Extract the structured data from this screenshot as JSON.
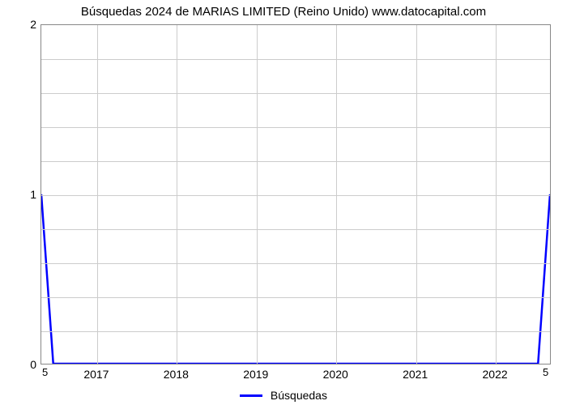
{
  "title": "Búsquedas 2024 de MARIAS LIMITED (Reino Unido) www.datocapital.com",
  "chart": {
    "type": "line",
    "background_color": "#ffffff",
    "grid_color": "#cccccc",
    "border_color": "#888888",
    "title_fontsize": 15,
    "label_fontsize": 14,
    "x": {
      "min": 2016.3,
      "max": 2022.7,
      "ticks": [
        2017,
        2018,
        2019,
        2020,
        2021,
        2022
      ],
      "corner_left": "5",
      "corner_right": "5"
    },
    "y": {
      "min": 0,
      "max": 2,
      "major_ticks": [
        0,
        1,
        2
      ],
      "minor_ticks": [
        0.2,
        0.4,
        0.6,
        0.8,
        1.2,
        1.4,
        1.6,
        1.8
      ]
    },
    "series": {
      "label": "Búsquedas",
      "color": "#0000ff",
      "line_width": 2.5,
      "points": [
        [
          2016.3,
          1.0
        ],
        [
          2016.45,
          0.0
        ],
        [
          2022.55,
          0.0
        ],
        [
          2022.7,
          1.0
        ]
      ]
    }
  },
  "legend": {
    "swatch_width": 28,
    "swatch_thickness": 3
  }
}
